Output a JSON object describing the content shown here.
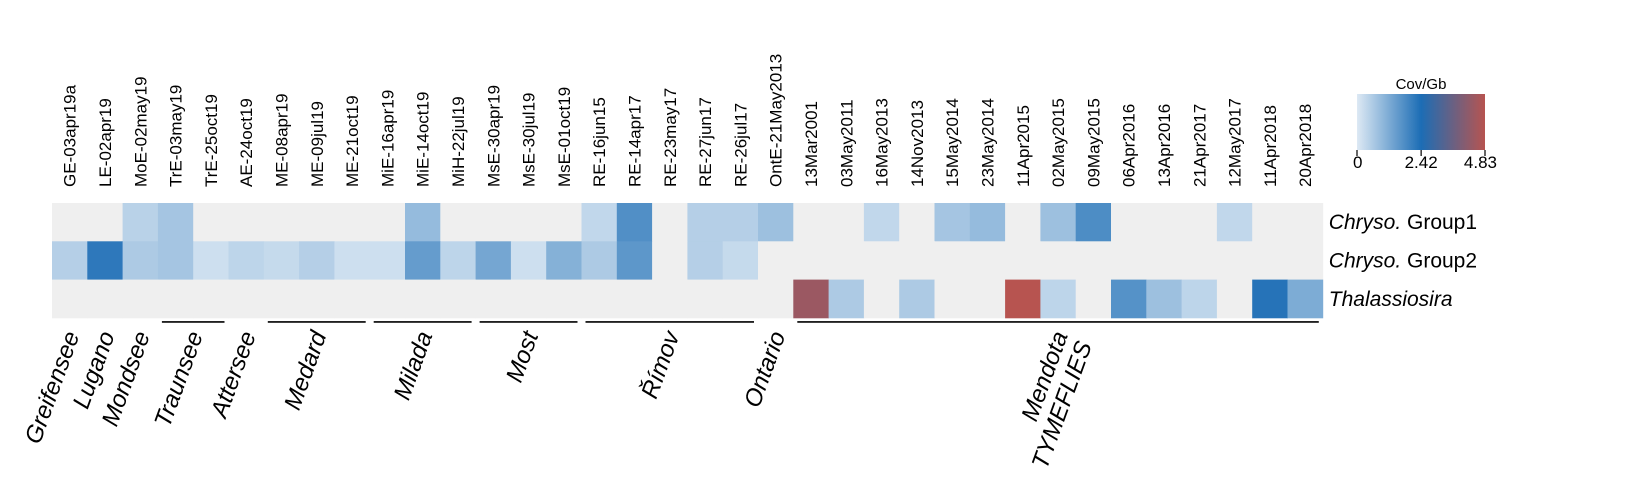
{
  "chart_data": {
    "type": "heatmap",
    "columns": [
      "GE-03apr19a",
      "LE-02apr19",
      "MoE-02may19",
      "TrE-03may19",
      "TrE-25oct19",
      "AE-24oct19",
      "ME-08apr19",
      "ME-09jul19",
      "ME-21oct19",
      "MiE-16apr19",
      "MiE-14oct19",
      "MiH-22jul19",
      "MsE-30apr19",
      "MsE-30jul19",
      "MsE-01oct19",
      "RE-16jun15",
      "RE-14apr17",
      "RE-23may17",
      "RE-27jun17",
      "RE-26jul17",
      "OntE-21May2013",
      "13Mar2001",
      "03May2011",
      "16May2013",
      "14Nov2013",
      "15May2014",
      "23May2014",
      "11Apr2015",
      "02May2015",
      "09May2015",
      "06Apr2016",
      "13Apr2016",
      "21Apr2017",
      "12May2017",
      "11Apr2018",
      "20Apr2018"
    ],
    "rows": [
      {
        "label_italic": "Chryso.",
        "label_rest": " Group1",
        "values": [
          0,
          0,
          0.45,
          0.7,
          0,
          0,
          0,
          0,
          0,
          0,
          0.9,
          0,
          0,
          0,
          0,
          0.35,
          1.75,
          0,
          0.5,
          0.5,
          0.8,
          0,
          0,
          0.35,
          0,
          0.7,
          0.9,
          0,
          0.8,
          1.8,
          0,
          0,
          0,
          0.35,
          0,
          0
        ]
      },
      {
        "label_italic": "Chryso.",
        "label_rest": " Group2",
        "values": [
          0.5,
          2.2,
          0.6,
          0.7,
          0.2,
          0.4,
          0.3,
          0.5,
          0.2,
          0.2,
          1.5,
          0.4,
          1.3,
          0.2,
          1.1,
          0.6,
          1.6,
          0,
          0.5,
          0.3,
          null,
          null,
          null,
          null,
          null,
          null,
          null,
          null,
          null,
          null,
          null,
          null,
          null,
          null,
          null,
          null
        ]
      },
      {
        "label_italic": "Thalassiosira",
        "label_rest": "",
        "values": [
          null,
          null,
          null,
          null,
          null,
          null,
          null,
          null,
          null,
          null,
          null,
          null,
          null,
          null,
          null,
          null,
          null,
          null,
          null,
          null,
          null,
          4.4,
          0.6,
          0,
          0.6,
          0,
          0,
          4.83,
          0.4,
          0,
          1.7,
          0.8,
          0.4,
          0,
          2.3,
          1.2
        ]
      }
    ],
    "groups": [
      {
        "name": "Greifensee",
        "start": 0,
        "end": 0
      },
      {
        "name": "Lugano",
        "start": 1,
        "end": 1
      },
      {
        "name": "Mondsee",
        "start": 2,
        "end": 2
      },
      {
        "name": "Traunsee",
        "start": 3,
        "end": 4
      },
      {
        "name": "Attersee",
        "start": 5,
        "end": 5
      },
      {
        "name": "Medard",
        "start": 6,
        "end": 8
      },
      {
        "name": "Milada",
        "start": 9,
        "end": 11
      },
      {
        "name": "Most",
        "start": 12,
        "end": 14
      },
      {
        "name": "Římov",
        "start": 15,
        "end": 19
      },
      {
        "name": "Ontario",
        "start": 20,
        "end": 20
      },
      {
        "name": "Mendota",
        "start": 21,
        "end": 35
      },
      {
        "name": "TYMEFLIES",
        "start": 21,
        "end": 35
      }
    ],
    "legend": {
      "title": "Cov/Gb",
      "min": 0,
      "mid": 2.42,
      "max": 4.83,
      "ticks": [
        "0",
        "2.42",
        "4.83"
      ],
      "stops": [
        "#dde9f4",
        "#1c6db5",
        "#b75450"
      ]
    },
    "no_data_color": "#efefef",
    "zero_color": "#efefef"
  }
}
